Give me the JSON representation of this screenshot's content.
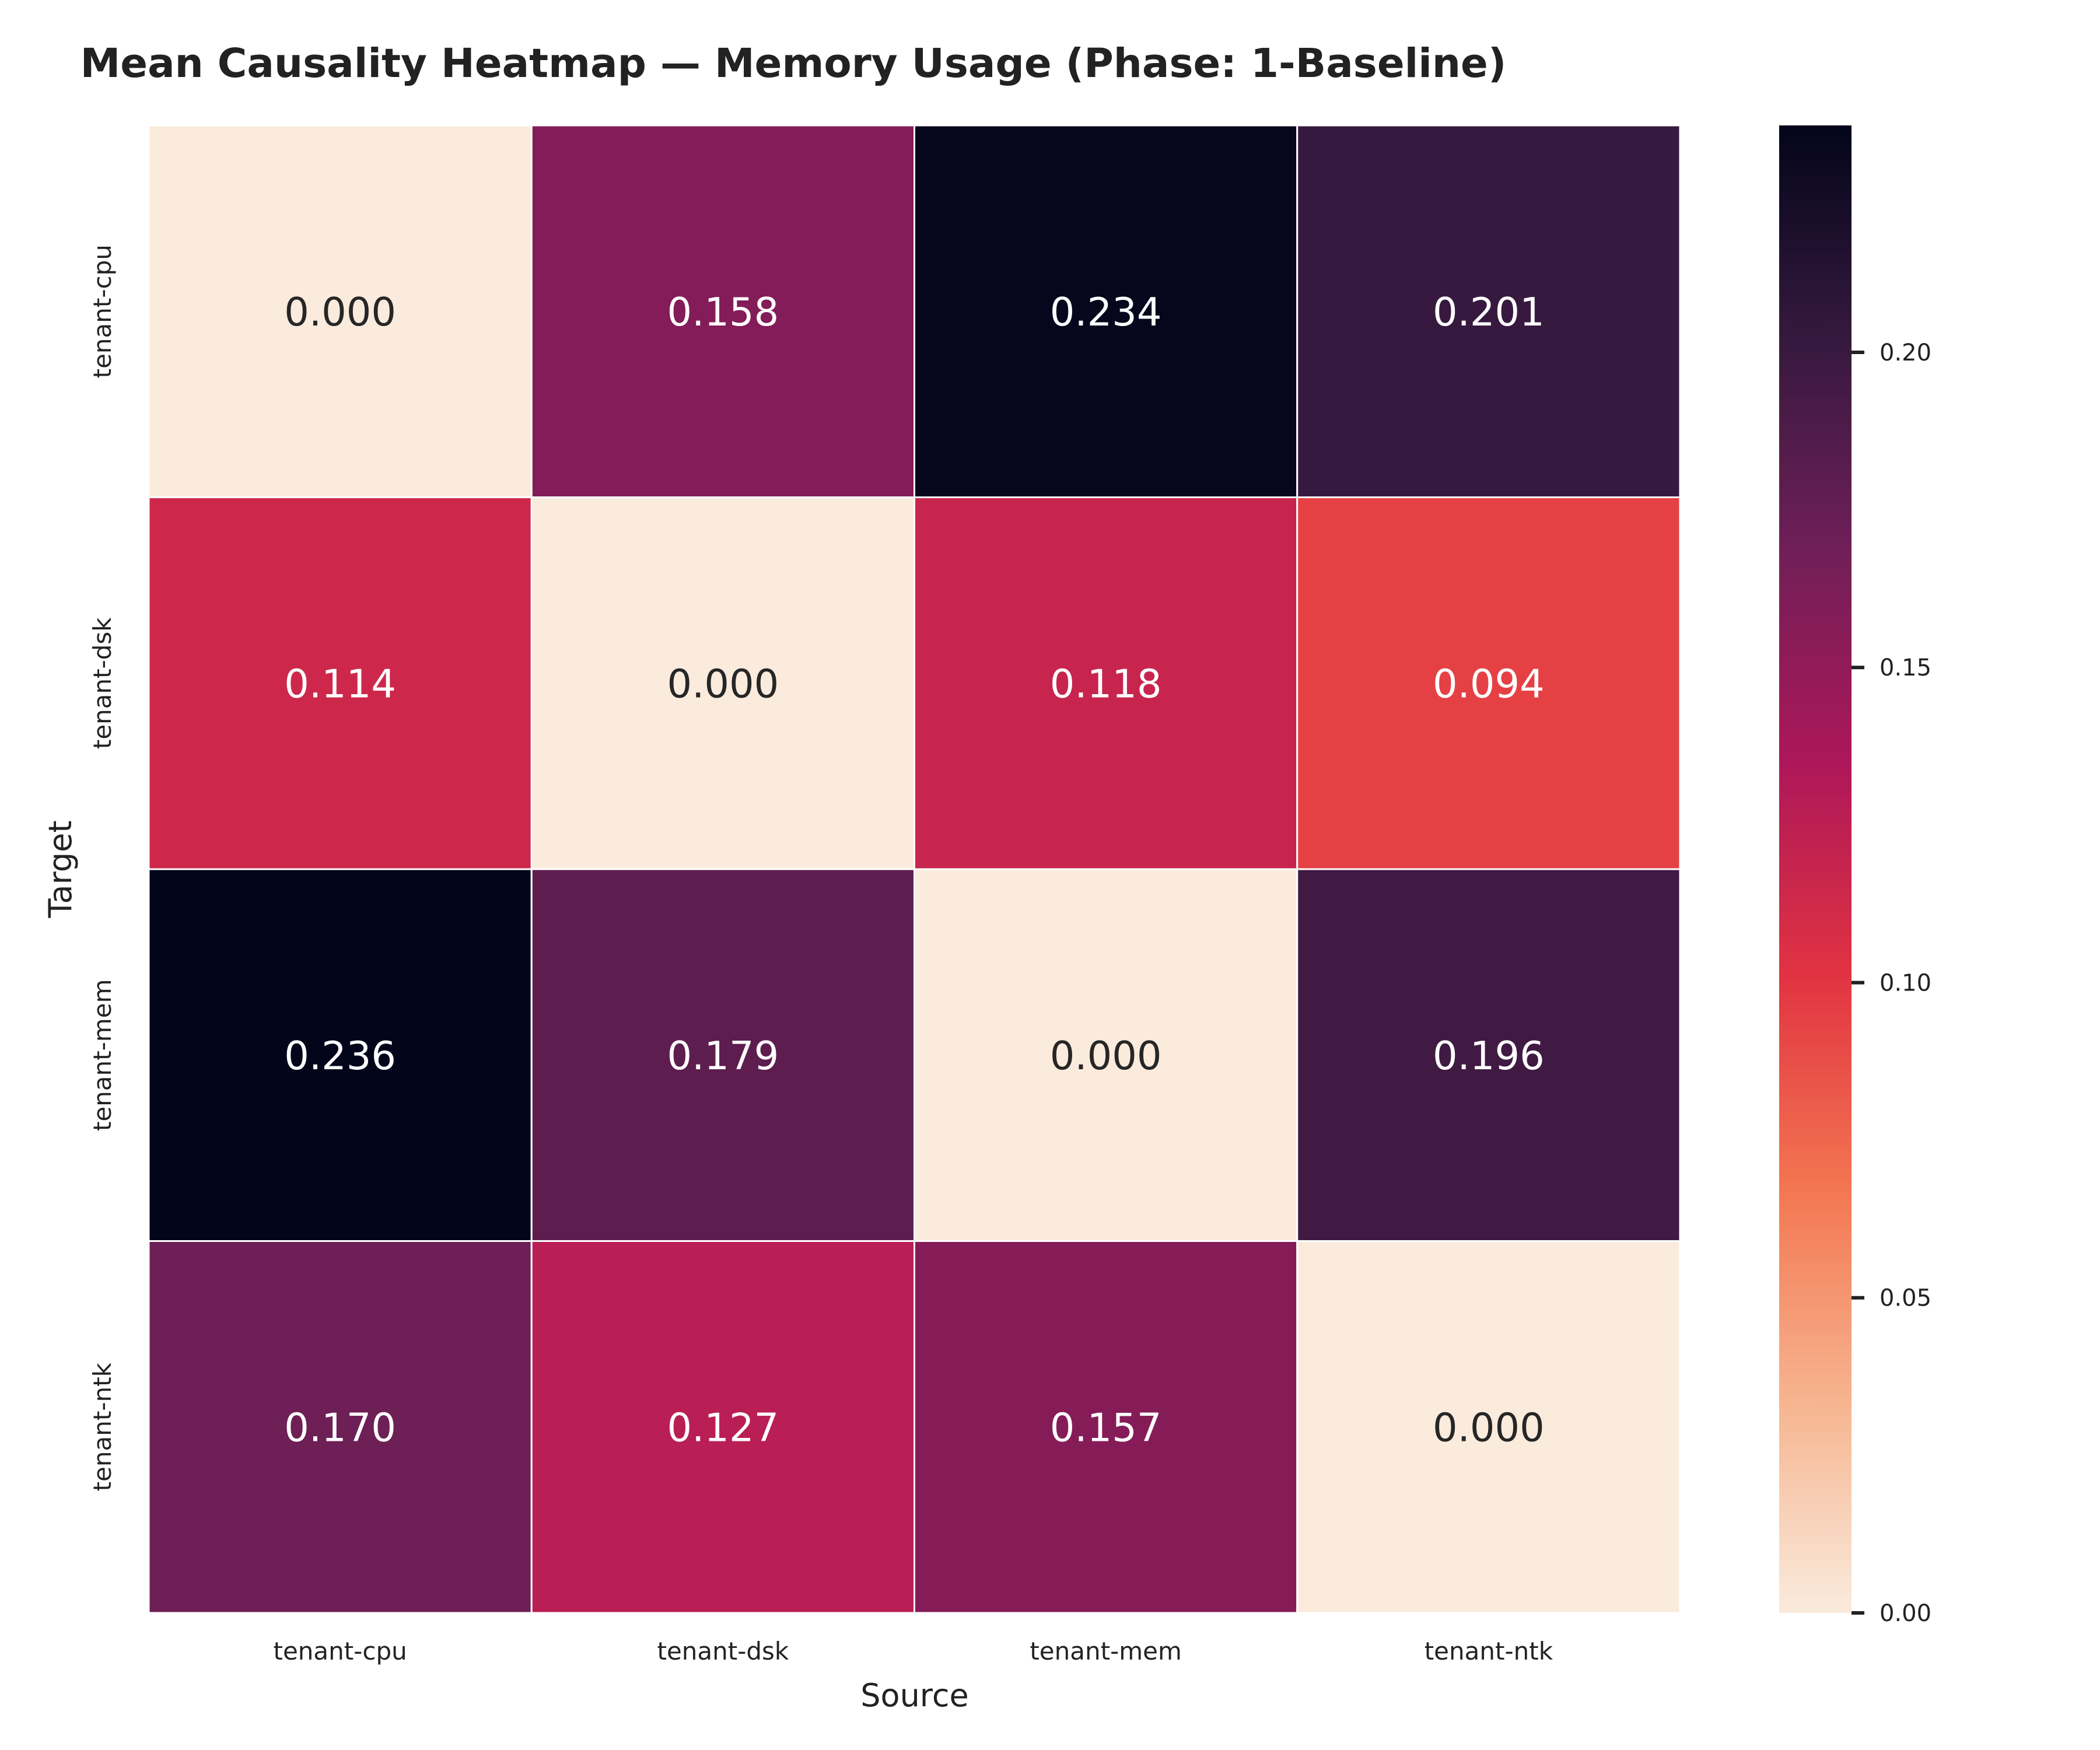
{
  "chart_data": {
    "type": "heatmap",
    "title": "Mean Causality Heatmap — Memory Usage (Phase: 1-Baseline)",
    "xlabel": "Source",
    "ylabel": "Target",
    "x_categories": [
      "tenant-cpu",
      "tenant-dsk",
      "tenant-mem",
      "tenant-ntk"
    ],
    "y_categories": [
      "tenant-cpu",
      "tenant-dsk",
      "tenant-mem",
      "tenant-ntk"
    ],
    "values": [
      [
        0.0,
        0.158,
        0.234,
        0.201
      ],
      [
        0.114,
        0.0,
        0.118,
        0.094
      ],
      [
        0.236,
        0.179,
        0.0,
        0.196
      ],
      [
        0.17,
        0.127,
        0.157,
        0.0
      ]
    ],
    "value_labels": [
      [
        "0.000",
        "0.158",
        "0.234",
        "0.201"
      ],
      [
        "0.114",
        "0.000",
        "0.118",
        "0.094"
      ],
      [
        "0.236",
        "0.179",
        "0.000",
        "0.196"
      ],
      [
        "0.170",
        "0.127",
        "0.157",
        "0.000"
      ]
    ],
    "colorbar": {
      "range": [
        0.0,
        0.236
      ],
      "ticks": [
        0.0,
        0.05,
        0.1,
        0.15,
        0.2
      ],
      "tick_labels": [
        "0.00",
        "0.05",
        "0.10",
        "0.15",
        "0.20"
      ],
      "colormap": "rocket_r",
      "colormap_stops": [
        "#faebdd",
        "#f6b48f",
        "#f37651",
        "#e13342",
        "#ad1759",
        "#701f57",
        "#35193e",
        "#03051a"
      ]
    },
    "grid": false,
    "cell_border_color": "#ffffff"
  }
}
